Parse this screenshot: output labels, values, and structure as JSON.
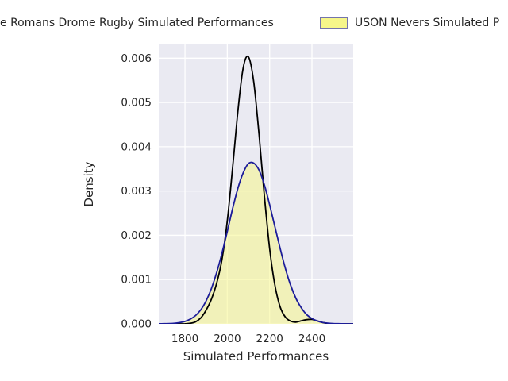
{
  "legend": {
    "items": [
      {
        "label": "e Romans Drome Rugby Simulated Performances",
        "series_color": "#000000",
        "swatch_visible": false
      },
      {
        "label": "USON Nevers Simulated P",
        "series_color": "#1c1c99",
        "swatch_visible": true,
        "swatch_fill": "#f6f68a",
        "swatch_border": "#7474ac"
      }
    ]
  },
  "chart_data": {
    "type": "area",
    "title": "",
    "xlabel": "Simulated Performances",
    "ylabel": "Density",
    "xlim": [
      1676,
      2595
    ],
    "ylim": [
      0,
      0.00631
    ],
    "xticks": [
      1800,
      2000,
      2200,
      2400
    ],
    "xtick_labels": [
      "1800",
      "2000",
      "2200",
      "2400"
    ],
    "yticks": [
      0,
      0.001,
      0.002,
      0.003,
      0.004,
      0.005,
      0.006
    ],
    "ytick_labels": [
      "0.000",
      "0.001",
      "0.002",
      "0.003",
      "0.004",
      "0.005",
      "0.006"
    ],
    "grid": true,
    "legend_position": "top-outside",
    "plot_bg": "#eaeaf2",
    "grid_color": "#ffffff",
    "text_color": "#262626",
    "x": [
      1675,
      1700,
      1725,
      1750,
      1775,
      1800,
      1825,
      1850,
      1875,
      1900,
      1925,
      1950,
      1975,
      2000,
      2025,
      2050,
      2075,
      2100,
      2125,
      2150,
      2175,
      2200,
      2225,
      2250,
      2275,
      2300,
      2325,
      2350,
      2375,
      2400,
      2425,
      2450,
      2475,
      2500,
      2525,
      2550,
      2595
    ],
    "series": [
      {
        "name": "e Romans Drome Rugby Simulated Performances",
        "kind": "kde-line",
        "color": "#000000",
        "fill": false,
        "peak_x": 2095,
        "peak_density": 0.006,
        "y": [
          0,
          0,
          0,
          1e-07,
          4e-07,
          2.6e-06,
          1.2e-05,
          4.7e-05,
          0.000137,
          0.00031,
          0.00056,
          0.00092,
          0.00146,
          0.00233,
          0.00352,
          0.0048,
          0.00578,
          0.00603,
          0.00546,
          0.00427,
          0.0029,
          0.0017,
          0.00087,
          0.00038,
          0.000148,
          6e-05,
          4e-05,
          7e-05,
          9.5e-05,
          0.0001,
          6.8e-05,
          3e-05,
          1e-05,
          2e-06,
          0,
          0,
          0
        ]
      },
      {
        "name": "USON Nevers Simulated P",
        "kind": "kde-filled",
        "color": "#1c1c99",
        "fill": true,
        "fill_color": "#f5f58a",
        "fill_opacity": 0.55,
        "peak_x": 2115,
        "peak_density": 0.00363,
        "y": [
          2e-06,
          3e-06,
          6e-06,
          1.3e-05,
          2.8e-05,
          5.6e-05,
          0.000106,
          0.000189,
          0.00032,
          0.00052,
          0.0008,
          0.00116,
          0.0016,
          0.00209,
          0.0026,
          0.00306,
          0.00341,
          0.00362,
          0.00363,
          0.00347,
          0.00314,
          0.00269,
          0.00219,
          0.0017,
          0.00124,
          0.00086,
          0.00057,
          0.00036,
          0.00021,
          0.00012,
          6.4e-05,
          3.3e-05,
          1.6e-05,
          7e-06,
          3e-06,
          1e-06,
          0
        ]
      }
    ]
  }
}
